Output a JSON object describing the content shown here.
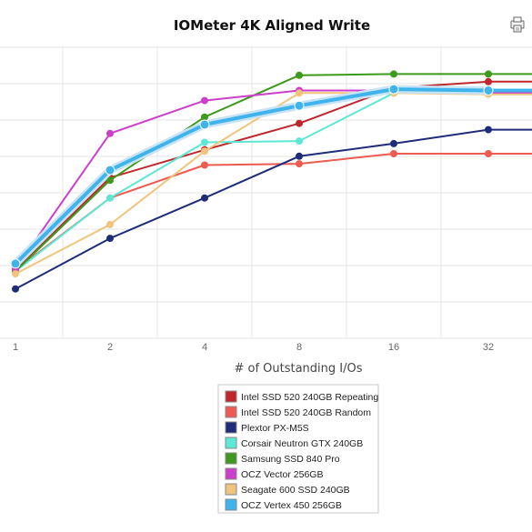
{
  "chart_data": {
    "type": "line",
    "title": "IOMeter 4K Aligned Write",
    "xlabel": "# of Outstanding I/Os",
    "ylabel": "",
    "x": [
      "1",
      "2",
      "4",
      "8",
      "16",
      "32"
    ],
    "ylim": [
      0,
      1
    ],
    "grid": true,
    "legend_position": "bottom-center",
    "series": [
      {
        "name": "Intel SSD 520 240GB Repeating",
        "color": "#c0272d",
        "values": [
          0.245,
          0.61,
          0.72,
          0.825,
          0.965,
          0.99
        ]
      },
      {
        "name": "Intel SSD 520 240GB Random",
        "color": "#ee5b50",
        "values": [
          0.245,
          0.53,
          0.66,
          0.665,
          0.705,
          0.705
        ]
      },
      {
        "name": "Plextor PX-M5S",
        "color": "#1e2c7a",
        "values": [
          0.17,
          0.37,
          0.53,
          0.695,
          0.745,
          0.8
        ]
      },
      {
        "name": "Corsair Neutron GTX 240GB",
        "color": "#5de8d6",
        "values": [
          0.24,
          0.53,
          0.75,
          0.755,
          0.945,
          0.945
        ]
      },
      {
        "name": "Samsung SSD 840 Pro",
        "color": "#3e9a1c",
        "values": [
          0.24,
          0.6,
          0.85,
          1.015,
          1.02,
          1.02
        ]
      },
      {
        "name": "OCZ Vector 256GB",
        "color": "#cc3fcc",
        "values": [
          0.25,
          0.785,
          0.915,
          0.955,
          0.955,
          0.945
        ]
      },
      {
        "name": "Seagate 600 SSD 240GB",
        "color": "#f0c47c",
        "values": [
          0.23,
          0.425,
          0.715,
          0.945,
          0.945,
          0.94
        ]
      },
      {
        "name": "OCZ Vertex 450 256GB",
        "color": "#3fb4ec",
        "values": [
          0.27,
          0.64,
          0.82,
          0.895,
          0.96,
          0.955
        ]
      }
    ]
  }
}
